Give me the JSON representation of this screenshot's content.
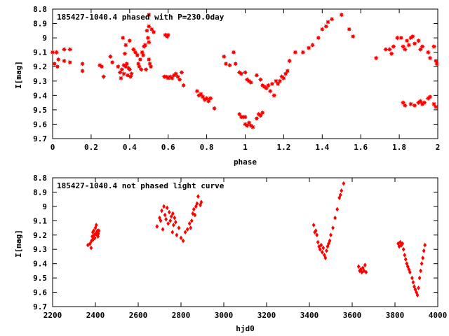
{
  "chart_data": [
    {
      "type": "scatter",
      "title": "185427-1040.4 phased with P=230.0day",
      "xlabel": "phase",
      "ylabel": "I[mag]",
      "xlim": [
        0,
        2
      ],
      "ylim": [
        9.7,
        8.8
      ],
      "y_inverted": true,
      "xticks": [
        0,
        0.2,
        0.4,
        0.6,
        0.8,
        1,
        1.2,
        1.4,
        1.6,
        1.8,
        2
      ],
      "xtick_labels": [
        "0",
        "0.2",
        "0.4",
        "0.6",
        "0.8",
        "1",
        "1.2",
        "1.4",
        "1.6",
        "1.8",
        "2"
      ],
      "yticks": [
        8.8,
        8.9,
        9,
        9.1,
        9.2,
        9.3,
        9.4,
        9.5,
        9.6,
        9.7
      ],
      "ytick_labels": [
        "8.8",
        "8.9",
        "9",
        "9.1",
        "9.2",
        "9.3",
        "9.4",
        "9.5",
        "9.6",
        "9.7"
      ],
      "marker": "star",
      "color": "#ff0000",
      "points": [
        [
          0.0,
          9.1
        ],
        [
          0.01,
          9.18
        ],
        [
          0.02,
          9.1
        ],
        [
          0.025,
          9.2
        ],
        [
          0.03,
          9.15
        ],
        [
          0.06,
          9.16
        ],
        [
          0.06,
          9.08
        ],
        [
          0.09,
          9.08
        ],
        [
          0.09,
          9.17
        ],
        [
          0.155,
          9.18
        ],
        [
          0.155,
          9.23
        ],
        [
          0.245,
          9.19
        ],
        [
          0.255,
          9.2
        ],
        [
          0.265,
          9.27
        ],
        [
          0.3,
          9.13
        ],
        [
          0.31,
          9.17
        ],
        [
          0.34,
          9.2
        ],
        [
          0.35,
          9.24
        ],
        [
          0.355,
          9.28
        ],
        [
          0.36,
          9.22
        ],
        [
          0.365,
          9.0
        ],
        [
          0.37,
          9.19
        ],
        [
          0.37,
          9.25
        ],
        [
          0.375,
          9.11
        ],
        [
          0.38,
          9.05
        ],
        [
          0.38,
          9.2
        ],
        [
          0.385,
          9.18
        ],
        [
          0.39,
          9.26
        ],
        [
          0.395,
          9.21
        ],
        [
          0.4,
          9.22
        ],
        [
          0.4,
          9.02
        ],
        [
          0.405,
          9.27
        ],
        [
          0.41,
          9.25
        ],
        [
          0.42,
          9.08
        ],
        [
          0.43,
          9.1
        ],
        [
          0.44,
          9.12
        ],
        [
          0.445,
          9.18
        ],
        [
          0.45,
          9.2
        ],
        [
          0.455,
          9.15
        ],
        [
          0.46,
          9.22
        ],
        [
          0.465,
          9.1
        ],
        [
          0.47,
          9.12
        ],
        [
          0.475,
          9.06
        ],
        [
          0.48,
          9.05
        ],
        [
          0.485,
          9.22
        ],
        [
          0.49,
          8.95
        ],
        [
          0.495,
          9.0
        ],
        [
          0.5,
          9.03
        ],
        [
          0.5,
          9.15
        ],
        [
          0.505,
          9.18
        ],
        [
          0.5,
          8.84
        ],
        [
          0.51,
          9.2
        ],
        [
          0.5,
          8.92
        ],
        [
          0.515,
          8.94
        ],
        [
          0.525,
          8.96
        ],
        [
          0.58,
          9.27
        ],
        [
          0.585,
          8.98
        ],
        [
          0.59,
          9.27
        ],
        [
          0.595,
          8.99
        ],
        [
          0.6,
          8.98
        ],
        [
          0.6,
          9.28
        ],
        [
          0.61,
          9.27
        ],
        [
          0.62,
          9.28
        ],
        [
          0.63,
          9.26
        ],
        [
          0.64,
          9.25
        ],
        [
          0.65,
          9.27
        ],
        [
          0.66,
          9.29
        ],
        [
          0.67,
          9.24
        ],
        [
          0.68,
          9.33
        ],
        [
          0.75,
          9.37
        ],
        [
          0.76,
          9.4
        ],
        [
          0.77,
          9.39
        ],
        [
          0.78,
          9.41
        ],
        [
          0.79,
          9.43
        ],
        [
          0.8,
          9.42
        ],
        [
          0.81,
          9.44
        ],
        [
          0.82,
          9.42
        ],
        [
          0.84,
          9.49
        ],
        [
          0.89,
          9.13
        ],
        [
          0.9,
          9.18
        ],
        [
          0.92,
          9.19
        ],
        [
          0.94,
          9.1
        ],
        [
          0.95,
          9.18
        ],
        [
          0.97,
          9.24
        ],
        [
          0.98,
          9.25
        ],
        [
          1.0,
          9.24
        ],
        [
          1.01,
          9.29
        ],
        [
          1.02,
          9.3
        ],
        [
          1.03,
          9.31
        ],
        [
          1.06,
          9.26
        ],
        [
          1.08,
          9.29
        ],
        [
          1.09,
          9.33
        ],
        [
          1.1,
          9.34
        ],
        [
          1.11,
          9.35
        ],
        [
          1.12,
          9.33
        ],
        [
          1.13,
          9.37
        ],
        [
          1.14,
          9.32
        ],
        [
          1.15,
          9.4
        ],
        [
          1.16,
          9.3
        ],
        [
          1.17,
          9.32
        ],
        [
          1.18,
          9.3
        ],
        [
          1.19,
          9.27
        ],
        [
          1.2,
          9.28
        ],
        [
          1.21,
          9.25
        ],
        [
          1.22,
          9.23
        ],
        [
          0.97,
          9.53
        ],
        [
          0.98,
          9.55
        ],
        [
          0.99,
          9.55
        ],
        [
          1.0,
          9.55
        ],
        [
          1.0,
          9.6
        ],
        [
          1.01,
          9.61
        ],
        [
          1.02,
          9.59
        ],
        [
          1.03,
          9.61
        ],
        [
          1.04,
          9.62
        ],
        [
          1.06,
          9.56
        ],
        [
          1.07,
          9.53
        ],
        [
          1.08,
          9.54
        ],
        [
          1.09,
          9.52
        ],
        [
          1.23,
          9.16
        ],
        [
          1.26,
          9.1
        ],
        [
          1.3,
          9.1
        ],
        [
          1.33,
          9.07
        ],
        [
          1.35,
          9.05
        ],
        [
          1.38,
          9.0
        ],
        [
          1.4,
          8.94
        ],
        [
          1.42,
          8.92
        ],
        [
          1.43,
          8.89
        ],
        [
          1.45,
          8.87
        ],
        [
          1.5,
          8.84
        ],
        [
          1.54,
          8.94
        ],
        [
          1.56,
          8.99
        ],
        [
          1.68,
          9.14
        ],
        [
          1.73,
          9.08
        ],
        [
          1.75,
          9.08
        ],
        [
          1.76,
          9.11
        ],
        [
          1.77,
          9.06
        ],
        [
          1.79,
          9.0
        ],
        [
          1.81,
          9.0
        ],
        [
          1.82,
          9.06
        ],
        [
          1.83,
          9.08
        ],
        [
          1.84,
          9.02
        ],
        [
          1.85,
          9.05
        ],
        [
          1.86,
          9.0
        ],
        [
          1.87,
          8.99
        ],
        [
          1.88,
          9.04
        ],
        [
          1.9,
          9.02
        ],
        [
          1.91,
          9.08
        ],
        [
          1.92,
          9.06
        ],
        [
          1.95,
          9.1
        ],
        [
          1.96,
          9.14
        ],
        [
          1.98,
          9.06
        ],
        [
          1.99,
          9.16
        ],
        [
          1.995,
          9.18
        ],
        [
          1.82,
          9.45
        ],
        [
          1.83,
          9.47
        ],
        [
          1.86,
          9.46
        ],
        [
          1.88,
          9.47
        ],
        [
          1.9,
          9.45
        ],
        [
          1.91,
          9.44
        ],
        [
          1.92,
          9.46
        ],
        [
          1.93,
          9.45
        ],
        [
          1.95,
          9.42
        ],
        [
          1.96,
          9.41
        ],
        [
          1.98,
          9.46
        ],
        [
          1.99,
          9.48
        ]
      ]
    },
    {
      "type": "scatter",
      "title": "185427-1040.4 not phased light curve",
      "xlabel": "hjd0",
      "ylabel": "I[mag]",
      "xlim": [
        2200,
        4000
      ],
      "ylim": [
        9.7,
        8.8
      ],
      "y_inverted": true,
      "xticks": [
        2200,
        2400,
        2600,
        2800,
        3000,
        3200,
        3400,
        3600,
        3800,
        4000
      ],
      "xtick_labels": [
        "2200",
        "2400",
        "2600",
        "2800",
        "3000",
        "3200",
        "3400",
        "3600",
        "3800",
        "4000"
      ],
      "yticks": [
        8.8,
        8.9,
        9,
        9.1,
        9.2,
        9.3,
        9.4,
        9.5,
        9.6,
        9.7
      ],
      "ytick_labels": [
        "8.8",
        "8.9",
        "9",
        "9.1",
        "9.2",
        "9.3",
        "9.4",
        "9.5",
        "9.6",
        "9.7"
      ],
      "marker": "diamond",
      "color": "#ff0000",
      "points": [
        [
          2365,
          9.27
        ],
        [
          2375,
          9.26
        ],
        [
          2380,
          9.29
        ],
        [
          2382,
          9.24
        ],
        [
          2385,
          9.21
        ],
        [
          2388,
          9.18
        ],
        [
          2390,
          9.23
        ],
        [
          2392,
          9.17
        ],
        [
          2395,
          9.2
        ],
        [
          2397,
          9.22
        ],
        [
          2400,
          9.15
        ],
        [
          2402,
          9.19
        ],
        [
          2404,
          9.13
        ],
        [
          2406,
          9.18
        ],
        [
          2408,
          9.2
        ],
        [
          2410,
          9.17
        ],
        [
          2412,
          9.21
        ],
        [
          2414,
          9.19
        ],
        [
          2416,
          9.17
        ],
        [
          2688,
          9.14
        ],
        [
          2700,
          9.08
        ],
        [
          2705,
          9.1
        ],
        [
          2710,
          9.03
        ],
        [
          2715,
          9.16
        ],
        [
          2720,
          9.0
        ],
        [
          2725,
          9.06
        ],
        [
          2730,
          9.09
        ],
        [
          2735,
          9.01
        ],
        [
          2740,
          9.12
        ],
        [
          2745,
          9.04
        ],
        [
          2750,
          9.1
        ],
        [
          2755,
          9.07
        ],
        [
          2760,
          9.18
        ],
        [
          2762,
          9.05
        ],
        [
          2765,
          9.13
        ],
        [
          2770,
          9.08
        ],
        [
          2775,
          9.11
        ],
        [
          2780,
          9.2
        ],
        [
          2790,
          9.15
        ],
        [
          2800,
          9.22
        ],
        [
          2810,
          9.24
        ],
        [
          2820,
          9.18
        ],
        [
          2830,
          9.16
        ],
        [
          2840,
          9.12
        ],
        [
          2845,
          9.15
        ],
        [
          2850,
          9.1
        ],
        [
          2855,
          9.05
        ],
        [
          2860,
          9.02
        ],
        [
          2865,
          9.06
        ],
        [
          2870,
          9.0
        ],
        [
          2875,
          8.98
        ],
        [
          2880,
          8.93
        ],
        [
          2890,
          8.99
        ],
        [
          2895,
          8.97
        ],
        [
          3420,
          9.13
        ],
        [
          3425,
          9.18
        ],
        [
          3430,
          9.17
        ],
        [
          3435,
          9.2
        ],
        [
          3440,
          9.25
        ],
        [
          3445,
          9.28
        ],
        [
          3450,
          9.3
        ],
        [
          3455,
          9.27
        ],
        [
          3460,
          9.32
        ],
        [
          3465,
          9.29
        ],
        [
          3470,
          9.34
        ],
        [
          3475,
          9.36
        ],
        [
          3480,
          9.31
        ],
        [
          3485,
          9.28
        ],
        [
          3490,
          9.26
        ],
        [
          3495,
          9.24
        ],
        [
          3500,
          9.2
        ],
        [
          3510,
          9.15
        ],
        [
          3520,
          9.08
        ],
        [
          3530,
          9.02
        ],
        [
          3540,
          8.94
        ],
        [
          3545,
          8.92
        ],
        [
          3550,
          8.89
        ],
        [
          3560,
          8.84
        ],
        [
          3630,
          9.42
        ],
        [
          3635,
          9.45
        ],
        [
          3640,
          9.44
        ],
        [
          3645,
          9.46
        ],
        [
          3650,
          9.43
        ],
        [
          3655,
          9.45
        ],
        [
          3660,
          9.41
        ],
        [
          3665,
          9.46
        ],
        [
          3815,
          9.26
        ],
        [
          3820,
          9.28
        ],
        [
          3825,
          9.25
        ],
        [
          3830,
          9.27
        ],
        [
          3835,
          9.26
        ],
        [
          3840,
          9.3
        ],
        [
          3845,
          9.34
        ],
        [
          3850,
          9.37
        ],
        [
          3855,
          9.4
        ],
        [
          3860,
          9.42
        ],
        [
          3865,
          9.44
        ],
        [
          3870,
          9.46
        ],
        [
          3880,
          9.5
        ],
        [
          3885,
          9.53
        ],
        [
          3890,
          9.56
        ],
        [
          3895,
          9.58
        ],
        [
          3900,
          9.6
        ],
        [
          3905,
          9.62
        ],
        [
          3910,
          9.57
        ],
        [
          3915,
          9.5
        ],
        [
          3920,
          9.45
        ],
        [
          3925,
          9.4
        ],
        [
          3930,
          9.36
        ],
        [
          3935,
          9.31
        ],
        [
          3940,
          9.27
        ]
      ]
    }
  ]
}
